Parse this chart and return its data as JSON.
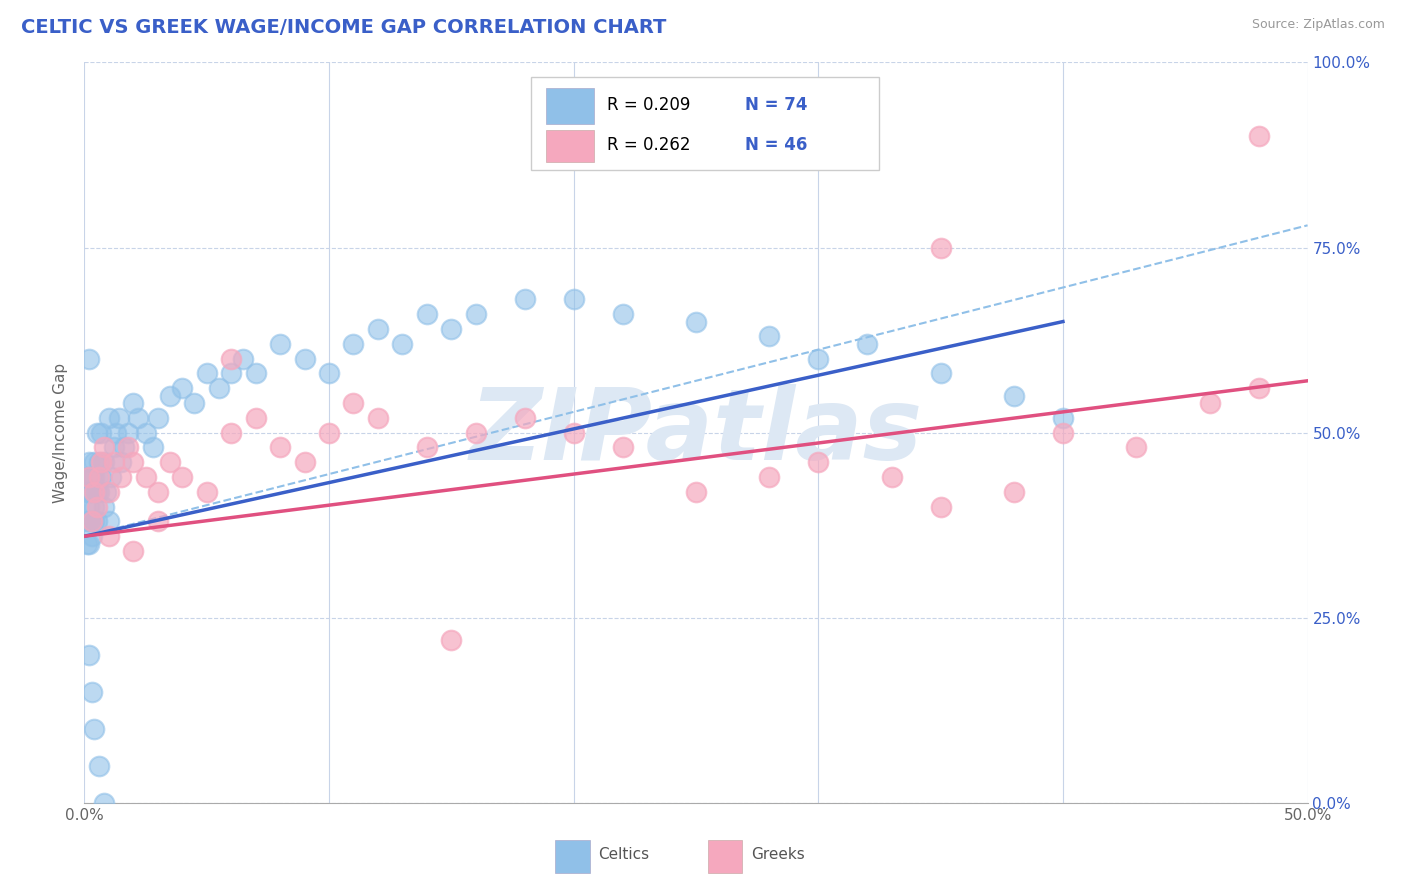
{
  "title": "CELTIC VS GREEK WAGE/INCOME GAP CORRELATION CHART",
  "source": "Source: ZipAtlas.com",
  "ylabel_label": "Wage/Income Gap",
  "x_min": 0.0,
  "x_max": 0.5,
  "y_min": 0.0,
  "y_max": 1.0,
  "celtic_color": "#90c0e8",
  "greek_color": "#f5a8be",
  "celtic_line_color": "#3a5fc8",
  "greek_line_color": "#e05080",
  "dashed_line_color": "#90c0e8",
  "legend_text_color": "#3a5fc8",
  "title_color": "#3a5fc8",
  "source_color": "#999999",
  "background_color": "#ffffff",
  "grid_color": "#c8d4e8",
  "legend_celtic_R": "R = 0.209",
  "legend_celtic_N": "N = 74",
  "legend_greek_R": "R = 0.262",
  "legend_greek_N": "N = 46",
  "watermark": "ZIPatlas",
  "watermark_color": "#dde8f4",
  "celtic_x": [
    0.001,
    0.001,
    0.001,
    0.001,
    0.002,
    0.002,
    0.002,
    0.002,
    0.002,
    0.003,
    0.003,
    0.003,
    0.003,
    0.004,
    0.004,
    0.004,
    0.004,
    0.005,
    0.005,
    0.005,
    0.006,
    0.006,
    0.007,
    0.007,
    0.008,
    0.008,
    0.009,
    0.01,
    0.01,
    0.011,
    0.012,
    0.013,
    0.014,
    0.015,
    0.016,
    0.018,
    0.02,
    0.022,
    0.025,
    0.028,
    0.03,
    0.035,
    0.04,
    0.045,
    0.05,
    0.055,
    0.06,
    0.065,
    0.07,
    0.08,
    0.09,
    0.1,
    0.11,
    0.12,
    0.13,
    0.14,
    0.15,
    0.16,
    0.18,
    0.2,
    0.22,
    0.25,
    0.28,
    0.3,
    0.32,
    0.35,
    0.38,
    0.4,
    0.002,
    0.003,
    0.004,
    0.006,
    0.008,
    0.002
  ],
  "celtic_y": [
    0.42,
    0.38,
    0.44,
    0.35,
    0.4,
    0.46,
    0.38,
    0.42,
    0.35,
    0.44,
    0.38,
    0.42,
    0.36,
    0.4,
    0.44,
    0.38,
    0.46,
    0.42,
    0.38,
    0.5,
    0.42,
    0.46,
    0.44,
    0.5,
    0.4,
    0.46,
    0.42,
    0.38,
    0.52,
    0.44,
    0.48,
    0.5,
    0.52,
    0.46,
    0.48,
    0.5,
    0.54,
    0.52,
    0.5,
    0.48,
    0.52,
    0.55,
    0.56,
    0.54,
    0.58,
    0.56,
    0.58,
    0.6,
    0.58,
    0.62,
    0.6,
    0.58,
    0.62,
    0.64,
    0.62,
    0.66,
    0.64,
    0.66,
    0.68,
    0.68,
    0.66,
    0.65,
    0.63,
    0.6,
    0.62,
    0.58,
    0.55,
    0.52,
    0.2,
    0.15,
    0.1,
    0.05,
    0.0,
    0.6
  ],
  "greek_x": [
    0.002,
    0.003,
    0.004,
    0.005,
    0.006,
    0.007,
    0.008,
    0.01,
    0.012,
    0.015,
    0.018,
    0.02,
    0.025,
    0.03,
    0.035,
    0.04,
    0.05,
    0.06,
    0.07,
    0.08,
    0.09,
    0.1,
    0.11,
    0.12,
    0.14,
    0.16,
    0.18,
    0.2,
    0.22,
    0.25,
    0.28,
    0.3,
    0.33,
    0.35,
    0.38,
    0.4,
    0.43,
    0.46,
    0.48,
    0.01,
    0.02,
    0.03,
    0.06,
    0.15,
    0.35,
    0.48
  ],
  "greek_y": [
    0.44,
    0.38,
    0.42,
    0.4,
    0.44,
    0.46,
    0.48,
    0.42,
    0.46,
    0.44,
    0.48,
    0.46,
    0.44,
    0.42,
    0.46,
    0.44,
    0.42,
    0.5,
    0.52,
    0.48,
    0.46,
    0.5,
    0.54,
    0.52,
    0.48,
    0.5,
    0.52,
    0.5,
    0.48,
    0.42,
    0.44,
    0.46,
    0.44,
    0.4,
    0.42,
    0.5,
    0.48,
    0.54,
    0.56,
    0.36,
    0.34,
    0.38,
    0.6,
    0.22,
    0.75,
    0.9
  ],
  "celtic_line_x": [
    0.0,
    0.4
  ],
  "celtic_line_y": [
    0.36,
    0.65
  ],
  "greek_line_x": [
    0.0,
    0.5
  ],
  "greek_line_y": [
    0.36,
    0.57
  ],
  "dashed_line_x": [
    0.0,
    0.5
  ],
  "dashed_line_y": [
    0.36,
    0.78
  ]
}
